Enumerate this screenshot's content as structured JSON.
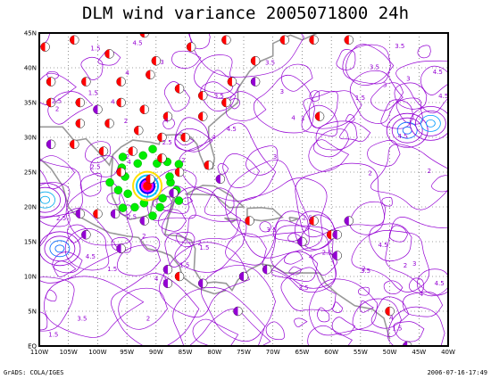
{
  "title": "DLM wind variance 2005071800 24h",
  "footer_left": "GrADS: COLA/IGES",
  "footer_right": "2006-07-16-17:49",
  "axes": {
    "x_labels": [
      "110W",
      "105W",
      "100W",
      "95W",
      "90W",
      "85W",
      "80W",
      "75W",
      "70W",
      "65W",
      "60W",
      "55W",
      "50W",
      "45W",
      "40W"
    ],
    "y_labels": [
      "EQ",
      "5N",
      "10N",
      "15N",
      "20N",
      "25N",
      "30N",
      "35N",
      "40N",
      "45N"
    ]
  },
  "chart_data": {
    "type": "map",
    "lon_range": [
      -110,
      -40
    ],
    "lat_range": [
      0,
      45
    ],
    "grid": true,
    "contour_labels": [
      "1.5",
      "2",
      "2.5",
      "3",
      "3.5",
      "4",
      "4.5"
    ],
    "colors": {
      "contour": "#9400d3",
      "coast": "#999999",
      "red_marker": "#ff0000",
      "purple_marker": "#9400d3",
      "storm_green": "#00ee00"
    },
    "red_markers": [
      [
        -109,
        43
      ],
      [
        -104,
        44
      ],
      [
        -98,
        42
      ],
      [
        -92,
        45
      ],
      [
        -90,
        41
      ],
      [
        -84,
        43
      ],
      [
        -78,
        44
      ],
      [
        -73,
        41
      ],
      [
        -68,
        44
      ],
      [
        -63,
        44
      ],
      [
        -57,
        44
      ],
      [
        -108,
        38
      ],
      [
        -102,
        38
      ],
      [
        -96,
        38
      ],
      [
        -91,
        39
      ],
      [
        -86,
        37
      ],
      [
        -82,
        36
      ],
      [
        -77,
        38
      ],
      [
        -108,
        35
      ],
      [
        -103,
        35
      ],
      [
        -96,
        35
      ],
      [
        -92,
        34
      ],
      [
        -88,
        33
      ],
      [
        -82,
        33
      ],
      [
        -78,
        35
      ],
      [
        -103,
        32
      ],
      [
        -98,
        32
      ],
      [
        -93,
        31
      ],
      [
        -89,
        30
      ],
      [
        -85,
        30
      ],
      [
        -104,
        29
      ],
      [
        -99,
        28
      ],
      [
        -94,
        28
      ],
      [
        -89,
        27
      ],
      [
        -96,
        25
      ],
      [
        -91,
        24
      ],
      [
        -86,
        25
      ],
      [
        -81,
        26
      ],
      [
        -62,
        33
      ],
      [
        -74,
        18
      ],
      [
        -63,
        18
      ],
      [
        -60,
        16
      ],
      [
        -100,
        19
      ],
      [
        -86,
        10
      ],
      [
        -50,
        5
      ]
    ],
    "purple_markers": [
      [
        -108,
        29
      ],
      [
        -103,
        19
      ],
      [
        -100,
        34
      ],
      [
        -97,
        19
      ],
      [
        -92,
        18
      ],
      [
        -87,
        22
      ],
      [
        -79,
        24
      ],
      [
        -73,
        38
      ],
      [
        -102,
        16
      ],
      [
        -96,
        14
      ],
      [
        -88,
        11
      ],
      [
        -82,
        9
      ],
      [
        -75,
        10
      ],
      [
        -71,
        11
      ],
      [
        -65,
        15
      ],
      [
        -59,
        13
      ],
      [
        -57,
        18
      ],
      [
        -59,
        16
      ],
      [
        -76,
        5
      ],
      [
        -88,
        9
      ],
      [
        -47,
        0
      ]
    ],
    "storm": {
      "lon": -91.5,
      "lat": 23
    }
  }
}
